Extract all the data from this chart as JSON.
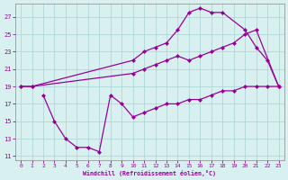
{
  "s1x": [
    0,
    1,
    10,
    11,
    12,
    13,
    14,
    15,
    16,
    17,
    18,
    20,
    21,
    22,
    23
  ],
  "s1y": [
    19,
    19,
    22,
    23,
    23.5,
    24,
    25.5,
    27.5,
    28,
    27.5,
    27.5,
    25.5,
    23.5,
    22,
    19
  ],
  "s2x": [
    0,
    1,
    10,
    11,
    12,
    13,
    14,
    15,
    16,
    17,
    18,
    19,
    20,
    21,
    23
  ],
  "s2y": [
    19,
    19,
    20.5,
    21,
    21.5,
    22,
    22.5,
    22,
    22.5,
    23,
    23.5,
    24,
    25,
    25.5,
    19
  ],
  "s3x": [
    2,
    3,
    4,
    5,
    6,
    7,
    8,
    9,
    10,
    11,
    12,
    13,
    14,
    15,
    16,
    17,
    18,
    19,
    20,
    21,
    22,
    23
  ],
  "s3y": [
    18,
    15,
    13,
    12,
    12,
    11.5,
    18,
    17,
    15.5,
    16,
    16.5,
    17,
    17,
    17.5,
    17.5,
    18,
    18.5,
    18.5,
    19,
    19,
    19,
    19
  ],
  "color": "#990099",
  "bg_color": "#d8f0f0",
  "grid_color": "#b0d8d8",
  "xlim": [
    -0.5,
    23.5
  ],
  "ylim": [
    10.5,
    28.5
  ],
  "xticks": [
    0,
    1,
    2,
    3,
    4,
    5,
    6,
    7,
    8,
    9,
    10,
    11,
    12,
    13,
    14,
    15,
    16,
    17,
    18,
    19,
    20,
    21,
    22,
    23
  ],
  "yticks": [
    11,
    13,
    15,
    17,
    19,
    21,
    23,
    25,
    27
  ],
  "xlabel": "Windchill (Refroidissement éolien,°C)"
}
